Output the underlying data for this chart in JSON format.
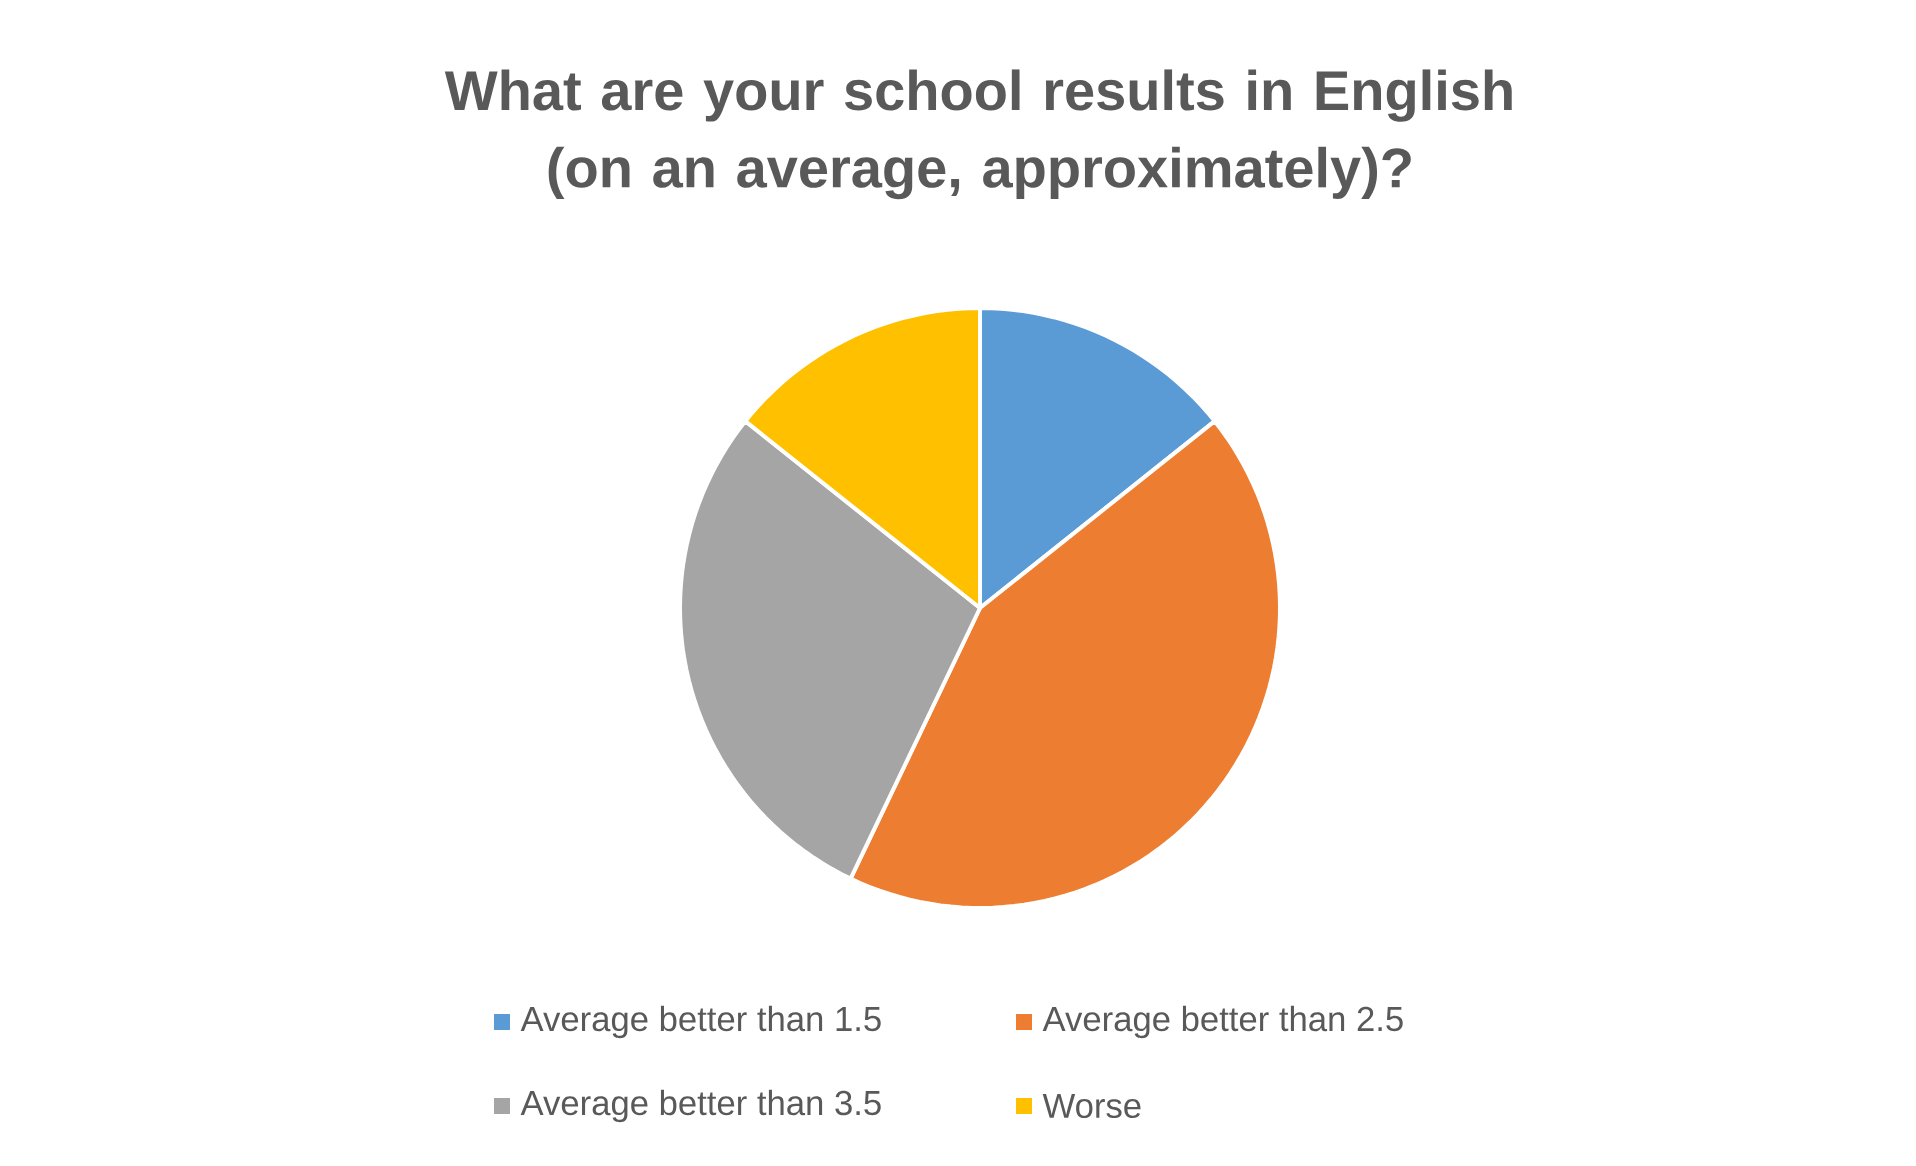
{
  "chart_data": {
    "type": "pie",
    "title": "What are your school results in English (on an average, approximately)?",
    "categories": [
      "Average better than 1.5",
      "Average better than 2.5",
      "Average better than 3.5",
      "Worse"
    ],
    "values": [
      14.3,
      42.8,
      28.6,
      14.3
    ],
    "colors": [
      "#5b9bd5",
      "#ed7d31",
      "#a5a5a5",
      "#ffc000"
    ],
    "legend": "bottom"
  }
}
